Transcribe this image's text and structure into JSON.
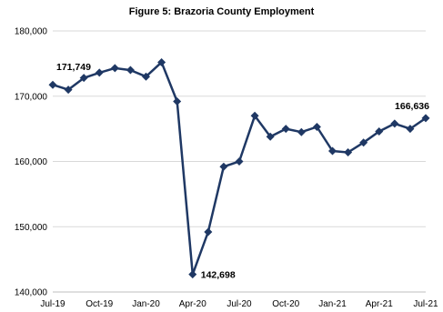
{
  "chart_data": {
    "type": "line",
    "title": "Figure 5: Brazoria County Employment",
    "xlabel": "",
    "ylabel": "",
    "ylim": [
      140000,
      180000
    ],
    "yticks": [
      140000,
      150000,
      160000,
      170000,
      180000
    ],
    "ytick_labels": [
      "140,000",
      "150,000",
      "160,000",
      "170,000",
      "180,000"
    ],
    "x": [
      "Jul-19",
      "Aug-19",
      "Sep-19",
      "Oct-19",
      "Nov-19",
      "Dec-19",
      "Jan-20",
      "Feb-20",
      "Mar-20",
      "Apr-20",
      "May-20",
      "Jun-20",
      "Jul-20",
      "Aug-20",
      "Sep-20",
      "Oct-20",
      "Nov-20",
      "Dec-20",
      "Jan-21",
      "Feb-21",
      "Mar-21",
      "Apr-21",
      "May-21",
      "Jun-21",
      "Jul-21"
    ],
    "xtick_labels": [
      "Jul-19",
      "Oct-19",
      "Jan-20",
      "Apr-20",
      "Jul-20",
      "Oct-20",
      "Jan-21",
      "Apr-21",
      "Jul-21"
    ],
    "series": [
      {
        "values": [
          171749,
          171000,
          172800,
          173600,
          174300,
          174000,
          173000,
          175200,
          169200,
          142698,
          149200,
          159200,
          160000,
          167000,
          163800,
          165000,
          164500,
          165300,
          161600,
          161400,
          162900,
          164600,
          165800,
          165000,
          166636
        ]
      }
    ],
    "data_labels": [
      {
        "index": 0,
        "text": "171,749"
      },
      {
        "index": 9,
        "text": "142,698"
      },
      {
        "index": 24,
        "text": "166,636"
      }
    ],
    "grid": true,
    "colors": {
      "line": "#1f3864",
      "grid": "#d9d9d9",
      "axis": "#bfbfbf"
    }
  }
}
